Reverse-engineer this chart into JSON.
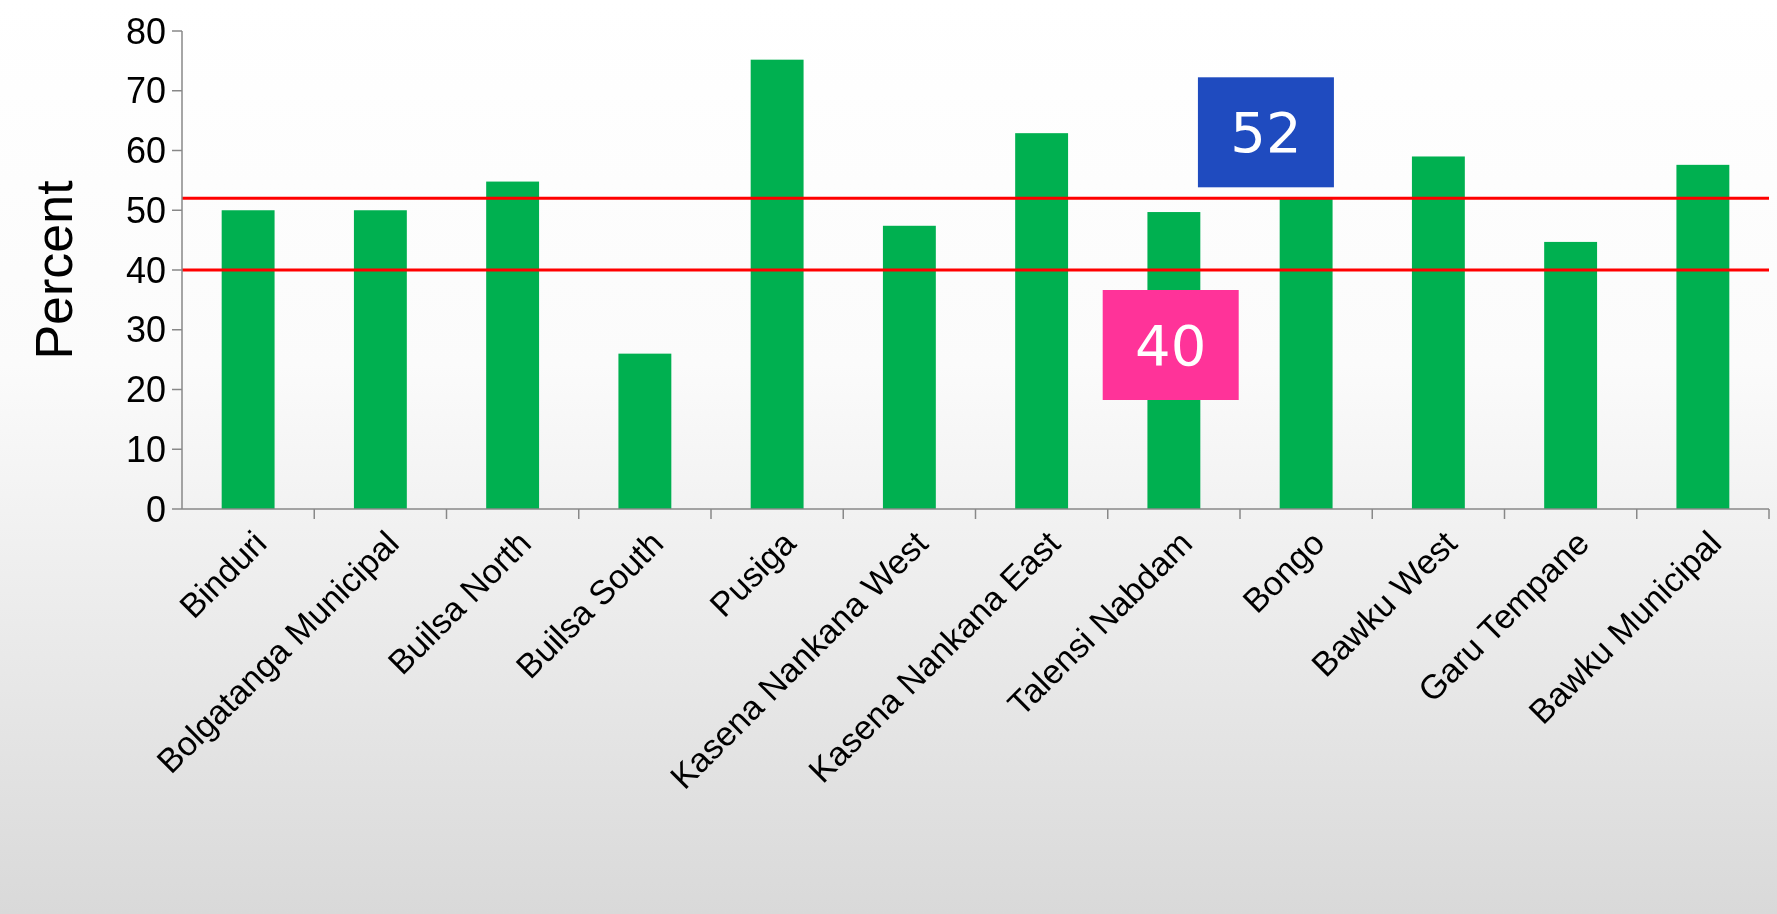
{
  "chart_data": {
    "type": "bar",
    "ylabel": "Percent",
    "categories": [
      "Binduri",
      "Bolgatanga Municipal",
      "Builsa North",
      "Builsa South",
      "Pusiga",
      "Kasena Nankana West",
      "Kasena Nankana East",
      "Talensi Nabdam",
      "Bongo",
      "Bawku West",
      "Garu Tempane",
      "Bawku Municipal"
    ],
    "values": [
      50,
      50,
      54.8,
      26,
      75.2,
      47.4,
      62.9,
      49.7,
      51.9,
      59,
      44.7,
      57.6
    ],
    "color": "#00b050",
    "ylim": [
      0,
      80
    ],
    "yticks": [
      0,
      10,
      20,
      30,
      40,
      50,
      60,
      70,
      80
    ],
    "grid": false,
    "ref_lines": [
      {
        "axis": "y",
        "value": 52,
        "label": "52",
        "color": "#ff0000"
      },
      {
        "axis": "y",
        "value": 40,
        "label": "40",
        "color": "#ff0000"
      }
    ]
  }
}
